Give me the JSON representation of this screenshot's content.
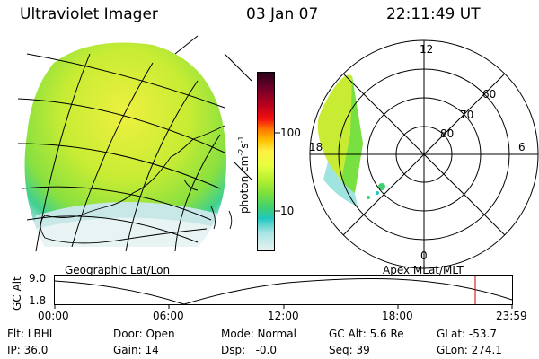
{
  "header": {
    "instrument": "Ultraviolet Imager",
    "date": "03 Jan 07",
    "time": "22:11:49 UT"
  },
  "colorbar": {
    "unit_label": "photon cm",
    "unit_sup1": "-2",
    "unit_s": "s",
    "unit_sup2": "-1",
    "tick_100": "100",
    "tick_10": "10",
    "colors": [
      "#2a0018",
      "#6a0028",
      "#b8001e",
      "#f01010",
      "#ff7a00",
      "#ffc000",
      "#ffee44",
      "#e8ff40",
      "#b8f030",
      "#7ce03c",
      "#40d070",
      "#20c8c0",
      "#a8e4e4",
      "#e8f2f2"
    ]
  },
  "polar": {
    "label_12": "12",
    "label_18": "18",
    "label_6": "6",
    "label_0": "0",
    "label_60": "60",
    "label_70": "70",
    "label_80": "80"
  },
  "panel_labels": {
    "geo": "Geographic Lat/Lon",
    "apex": "Apex MLat/MLT"
  },
  "altitude_plot": {
    "ylabel": "GC Alt",
    "ytick_top": "9.0",
    "ytick_bottom": "1.8",
    "xticks": [
      "00:00",
      "06:00",
      "12:00",
      "18:00",
      "23:59"
    ]
  },
  "footer": {
    "flt": "Flt: LBHL",
    "ip": "IP: 36.0",
    "door": "Door: Open",
    "gain": "Gain: 14",
    "mode": "Mode: Normal",
    "dsp": "Dsp:   -0.0",
    "gcalt": "GC Alt: 5.6 Re",
    "seq": "Seq: 39",
    "glat": "GLat: -53.7",
    "glon": "GLon: 274.1"
  }
}
